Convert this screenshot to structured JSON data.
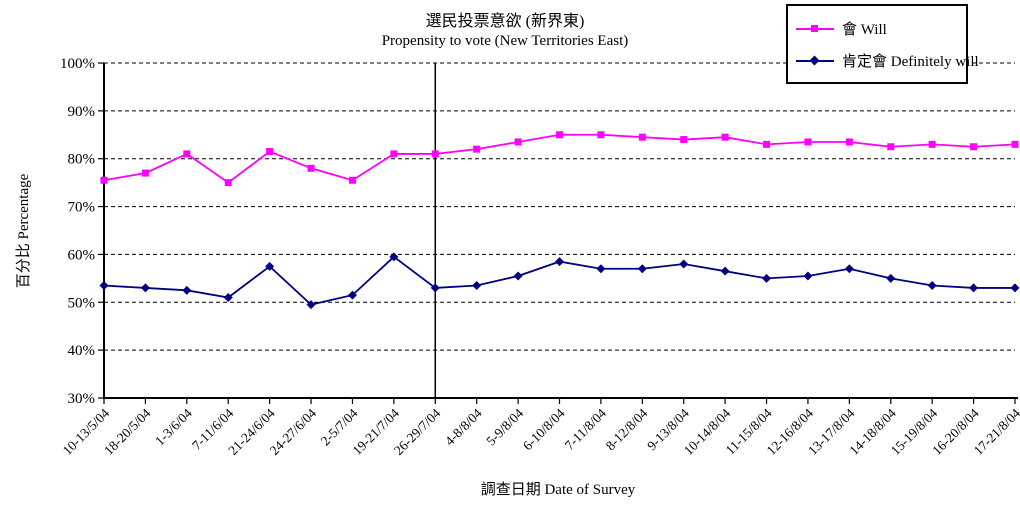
{
  "title": {
    "line1": "選民投票意欲 (新界東)",
    "line2": "Propensity to vote (New Territories East)"
  },
  "axes": {
    "y_title": "百分比 Percentage",
    "x_title": "調查日期 Date of Survey",
    "y_tick_labels": [
      "30%",
      "40%",
      "50%",
      "60%",
      "70%",
      "80%",
      "90%",
      "100%"
    ]
  },
  "legend": {
    "items": [
      {
        "label": "會 Will",
        "color": "#FF00FF",
        "marker": "square"
      },
      {
        "label": "肯定會 Definitely will",
        "color": "#000080",
        "marker": "diamond"
      }
    ]
  },
  "colors": {
    "axis": "#000000",
    "grid": "#000000",
    "background": "#FFFFFF",
    "legend_border": "#000000",
    "annotation_line": "#000000"
  },
  "chart_data": {
    "type": "line",
    "title": "選民投票意欲 (新界東) Propensity to vote (New Territories East)",
    "xlabel": "調查日期 Date of Survey",
    "ylabel": "百分比 Percentage",
    "ylim": [
      30,
      100
    ],
    "y_tick_step": 10,
    "y_tick_suffix": "%",
    "grid": "horizontal-dashed",
    "legend_position": "top-right",
    "categories": [
      "10-13/5/04",
      "18-20/5/04",
      "1-3/6/04",
      "7-11/6/04",
      "21-24/6/04",
      "24-27/6/04",
      "2-5/7/04",
      "19-21/7/04",
      "26-29/7/04",
      "4-8/8/04",
      "5-9/8/04",
      "6-10/8/04",
      "7-11/8/04",
      "8-12/8/04",
      "9-13/8/04",
      "10-14/8/04",
      "11-15/8/04",
      "12-16/8/04",
      "13-17/8/04",
      "14-18/8/04",
      "15-19/8/04",
      "16-20/8/04",
      "17-21/8/04"
    ],
    "series": [
      {
        "name": "會 Will",
        "color": "#FF00FF",
        "marker": "square",
        "values": [
          75.5,
          77,
          81,
          75,
          81.5,
          78,
          75.5,
          81,
          81,
          82,
          83.5,
          85,
          85,
          84.5,
          84,
          84.5,
          83,
          83.5,
          83.5,
          82.5,
          83,
          82.5,
          83
        ]
      },
      {
        "name": "肯定會 Definitely will",
        "color": "#000080",
        "marker": "diamond",
        "values": [
          53.5,
          53,
          52.5,
          51,
          57.5,
          49.5,
          51.5,
          59.5,
          53,
          53.5,
          55.5,
          58.5,
          57,
          57,
          58,
          56.5,
          55,
          55.5,
          57,
          55,
          53.5,
          53,
          53
        ]
      }
    ],
    "vertical_line_at": "26-29/7/04"
  }
}
